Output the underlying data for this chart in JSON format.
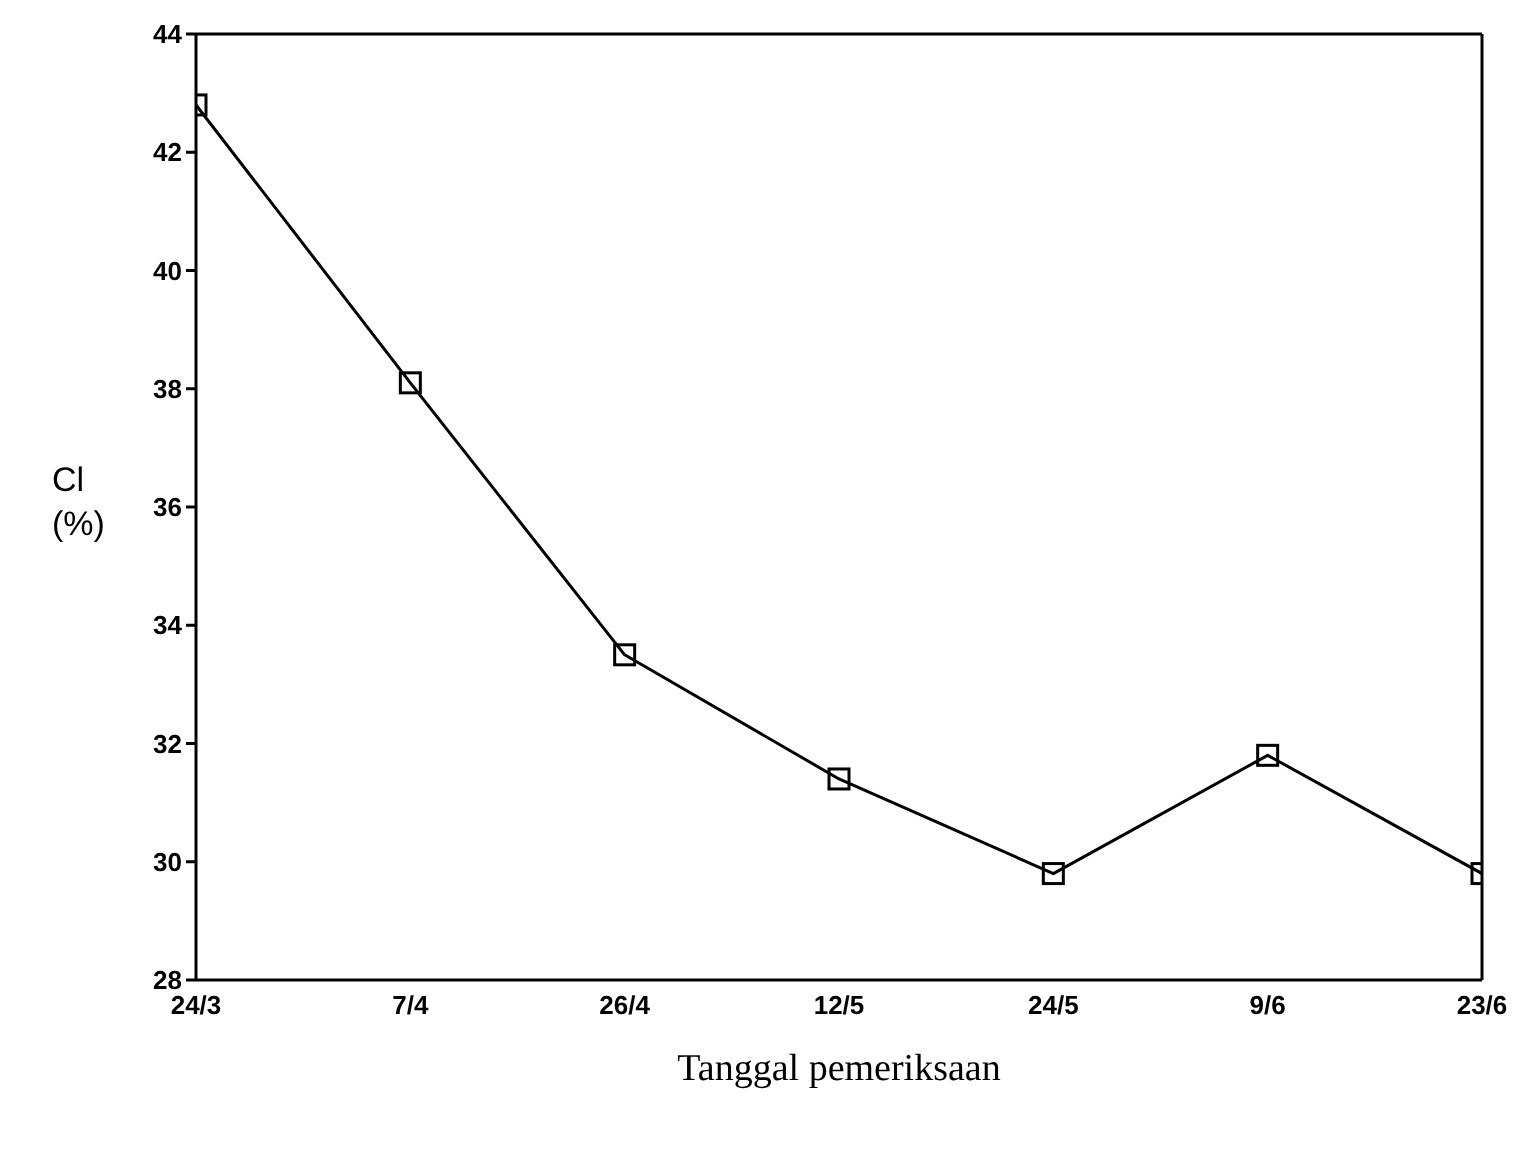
{
  "chart_data": {
    "type": "line",
    "xlabel": "Tanggal pemeriksaan",
    "ylabel": "Cl\n(%)",
    "categories": [
      "24/3",
      "7/4",
      "26/4",
      "12/5",
      "24/5",
      "9/6",
      "23/6"
    ],
    "series": [
      {
        "color": "#000000",
        "values": [
          42.8,
          38.1,
          33.5,
          31.4,
          29.8,
          31.8,
          29.8
        ]
      }
    ],
    "ylim": [
      28,
      44
    ],
    "yticks": [
      28,
      30,
      32,
      34,
      36,
      38,
      40,
      42,
      44
    ],
    "marker": "square",
    "line_style": "solid",
    "grid": false,
    "legend": false
  }
}
